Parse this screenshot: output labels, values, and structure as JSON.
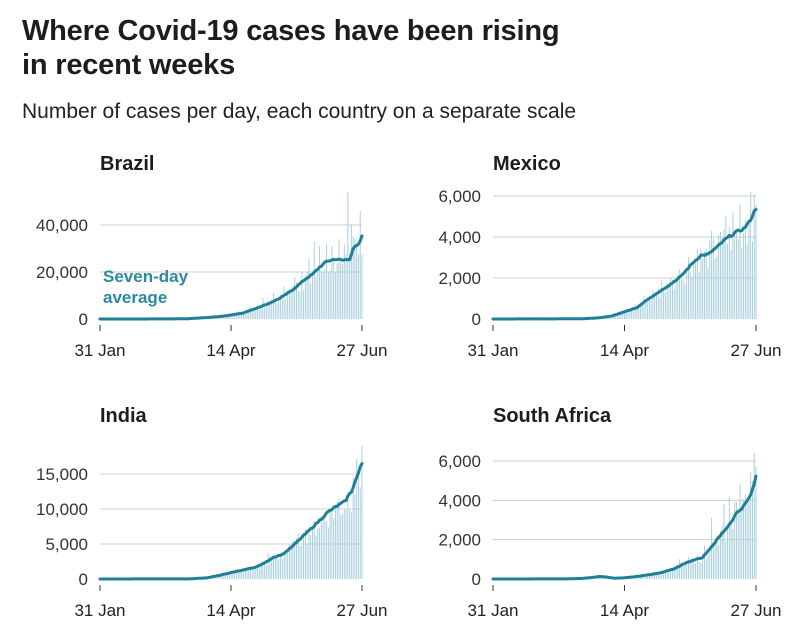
{
  "header": {
    "title_line1": "Where Covid-19 cases have been rising",
    "title_line2": "in recent weeks",
    "subtitle": "Number of cases per day, each country on a separate scale"
  },
  "colors": {
    "average_line": "#1e7f96",
    "daily_bars": "#a9cfdc",
    "annotation": "#2b8aa0",
    "gridline": "#cfcfcf"
  },
  "chart_data": [
    {
      "type": "bar",
      "title": "Brazil",
      "xlabel": "",
      "ylabel": "Number of cases per day",
      "x_start": "31 Jan",
      "x_end": "27 Jun",
      "days": 148,
      "x_ticks": [
        {
          "day": 0,
          "label": "31 Jan"
        },
        {
          "day": 74,
          "label": "14 Apr"
        },
        {
          "day": 148,
          "label": "27 Jun"
        }
      ],
      "y_ticks": [
        {
          "value": 0,
          "label": "0"
        },
        {
          "value": 20000,
          "label": "20,000"
        },
        {
          "value": 40000,
          "label": "40,000"
        }
      ],
      "ylim": [
        0,
        54000
      ],
      "annotation": {
        "line1": "Seven-day",
        "line2": "average"
      },
      "series": [
        {
          "name": "Seven-day average",
          "kind": "line",
          "points": [
            [
              0,
              0
            ],
            [
              40,
              30
            ],
            [
              50,
              150
            ],
            [
              60,
              600
            ],
            [
              67,
              1000
            ],
            [
              74,
              1700
            ],
            [
              81,
              2600
            ],
            [
              88,
              4500
            ],
            [
              95,
              6500
            ],
            [
              102,
              9000
            ],
            [
              109,
              12500
            ],
            [
              116,
              17000
            ],
            [
              120,
              19000
            ],
            [
              124,
              22000
            ],
            [
              128,
              24500
            ],
            [
              133,
              25500
            ],
            [
              137,
              25000
            ],
            [
              141,
              25500
            ],
            [
              143,
              30000
            ],
            [
              146,
              31500
            ],
            [
              148,
              35000
            ]
          ]
        },
        {
          "name": "Daily cases",
          "kind": "bar",
          "peaks": [
            [
              60,
              1200
            ],
            [
              70,
              1800
            ],
            [
              78,
              3500
            ],
            [
              85,
              5000
            ],
            [
              92,
              9000
            ],
            [
              98,
              11000
            ],
            [
              104,
              14000
            ],
            [
              110,
              18000
            ],
            [
              114,
              20000
            ],
            [
              118,
              26000
            ],
            [
              121,
              33000
            ],
            [
              124,
              31000
            ],
            [
              128,
              32000
            ],
            [
              131,
              31000
            ],
            [
              135,
              34000
            ],
            [
              138,
              32000
            ],
            [
              140,
              54000
            ],
            [
              142,
              40000
            ],
            [
              144,
              34000
            ],
            [
              147,
              46000
            ]
          ]
        }
      ]
    },
    {
      "type": "bar",
      "title": "Mexico",
      "xlabel": "",
      "ylabel": "Number of cases per day",
      "x_start": "31 Jan",
      "x_end": "27 Jun",
      "days": 148,
      "x_ticks": [
        {
          "day": 0,
          "label": "31 Jan"
        },
        {
          "day": 74,
          "label": "14 Apr"
        },
        {
          "day": 148,
          "label": "27 Jun"
        }
      ],
      "y_ticks": [
        {
          "value": 0,
          "label": "0"
        },
        {
          "value": 2000,
          "label": "2,000"
        },
        {
          "value": 4000,
          "label": "4,000"
        },
        {
          "value": 6000,
          "label": "6,000"
        }
      ],
      "ylim": [
        0,
        6300
      ],
      "series": [
        {
          "name": "Seven-day average",
          "kind": "line",
          "points": [
            [
              0,
              0
            ],
            [
              50,
              10
            ],
            [
              60,
              60
            ],
            [
              67,
              150
            ],
            [
              74,
              350
            ],
            [
              81,
              550
            ],
            [
              86,
              900
            ],
            [
              93,
              1300
            ],
            [
              100,
              1700
            ],
            [
              106,
              2100
            ],
            [
              112,
              2700
            ],
            [
              117,
              3100
            ],
            [
              121,
              3150
            ],
            [
              126,
              3500
            ],
            [
              131,
              3900
            ],
            [
              136,
              4200
            ],
            [
              141,
              4400
            ],
            [
              144,
              4700
            ],
            [
              148,
              5400
            ]
          ]
        },
        {
          "name": "Daily cases",
          "kind": "bar",
          "peaks": [
            [
              74,
              400
            ],
            [
              80,
              700
            ],
            [
              85,
              1100
            ],
            [
              90,
              1400
            ],
            [
              95,
              1900
            ],
            [
              100,
              2000
            ],
            [
              105,
              2400
            ],
            [
              110,
              3000
            ],
            [
              115,
              3400
            ],
            [
              119,
              3300
            ],
            [
              123,
              4300
            ],
            [
              127,
              4100
            ],
            [
              131,
              5000
            ],
            [
              135,
              5200
            ],
            [
              139,
              5600
            ],
            [
              142,
              4800
            ],
            [
              145,
              6200
            ],
            [
              147,
              6100
            ]
          ]
        }
      ]
    },
    {
      "type": "bar",
      "title": "India",
      "xlabel": "",
      "ylabel": "Number of cases per day",
      "x_start": "31 Jan",
      "x_end": "27 Jun",
      "days": 148,
      "x_ticks": [
        {
          "day": 0,
          "label": "31 Jan"
        },
        {
          "day": 74,
          "label": "14 Apr"
        },
        {
          "day": 148,
          "label": "27 Jun"
        }
      ],
      "y_ticks": [
        {
          "value": 0,
          "label": "0"
        },
        {
          "value": 5000,
          "label": "5,000"
        },
        {
          "value": 10000,
          "label": "10,000"
        },
        {
          "value": 15000,
          "label": "15,000"
        }
      ],
      "ylim": [
        0,
        18500
      ],
      "series": [
        {
          "name": "Seven-day average",
          "kind": "line",
          "points": [
            [
              0,
              0
            ],
            [
              50,
              20
            ],
            [
              60,
              150
            ],
            [
              67,
              500
            ],
            [
              74,
              900
            ],
            [
              81,
              1300
            ],
            [
              88,
              1700
            ],
            [
              93,
              2300
            ],
            [
              98,
              3100
            ],
            [
              103,
              3500
            ],
            [
              108,
              4500
            ],
            [
              113,
              5700
            ],
            [
              118,
              6900
            ],
            [
              123,
              8100
            ],
            [
              128,
              9400
            ],
            [
              133,
              10300
            ],
            [
              138,
              11000
            ],
            [
              142,
              12500
            ],
            [
              145,
              14500
            ],
            [
              148,
              16500
            ]
          ]
        },
        {
          "name": "Daily cases",
          "kind": "bar",
          "peaks": [
            [
              70,
              900
            ],
            [
              78,
              1300
            ],
            [
              85,
              1800
            ],
            [
              90,
              2200
            ],
            [
              95,
              3800
            ],
            [
              100,
              3600
            ],
            [
              105,
              4000
            ],
            [
              110,
              5500
            ],
            [
              115,
              6600
            ],
            [
              120,
              7500
            ],
            [
              125,
              9000
            ],
            [
              130,
              10000
            ],
            [
              135,
              11500
            ],
            [
              140,
              12000
            ],
            [
              143,
              14500
            ],
            [
              146,
              15500
            ],
            [
              148,
              19000
            ]
          ]
        }
      ]
    },
    {
      "type": "bar",
      "title": "South Africa",
      "xlabel": "",
      "ylabel": "Number of cases per day",
      "x_start": "31 Jan",
      "x_end": "27 Jun",
      "days": 148,
      "x_ticks": [
        {
          "day": 0,
          "label": "31 Jan"
        },
        {
          "day": 74,
          "label": "14 Apr"
        },
        {
          "day": 148,
          "label": "27 Jun"
        }
      ],
      "y_ticks": [
        {
          "value": 0,
          "label": "0"
        },
        {
          "value": 2000,
          "label": "2,000"
        },
        {
          "value": 4000,
          "label": "4,000"
        },
        {
          "value": 6000,
          "label": "6,000"
        }
      ],
      "ylim": [
        0,
        6500
      ],
      "series": [
        {
          "name": "Seven-day average",
          "kind": "line",
          "points": [
            [
              0,
              0
            ],
            [
              40,
              5
            ],
            [
              50,
              30
            ],
            [
              56,
              80
            ],
            [
              60,
              130
            ],
            [
              64,
              100
            ],
            [
              68,
              40
            ],
            [
              74,
              60
            ],
            [
              81,
              130
            ],
            [
              88,
              220
            ],
            [
              95,
              330
            ],
            [
              102,
              520
            ],
            [
              108,
              800
            ],
            [
              114,
              1000
            ],
            [
              118,
              1100
            ],
            [
              123,
              1650
            ],
            [
              127,
              2100
            ],
            [
              131,
              2550
            ],
            [
              134,
              2900
            ],
            [
              137,
              3350
            ],
            [
              141,
              3700
            ],
            [
              144,
              4100
            ],
            [
              146,
              4500
            ],
            [
              148,
              5200
            ]
          ]
        },
        {
          "name": "Daily cases",
          "kind": "bar",
          "peaks": [
            [
              56,
              150
            ],
            [
              80,
              200
            ],
            [
              90,
              300
            ],
            [
              98,
              500
            ],
            [
              105,
              1000
            ],
            [
              110,
              1100
            ],
            [
              115,
              1200
            ],
            [
              119,
              1700
            ],
            [
              123,
              3100
            ],
            [
              126,
              2200
            ],
            [
              130,
              3800
            ],
            [
              133,
              4200
            ],
            [
              136,
              3900
            ],
            [
              139,
              4800
            ],
            [
              142,
              4300
            ],
            [
              145,
              5400
            ],
            [
              147,
              6400
            ]
          ]
        }
      ]
    }
  ]
}
